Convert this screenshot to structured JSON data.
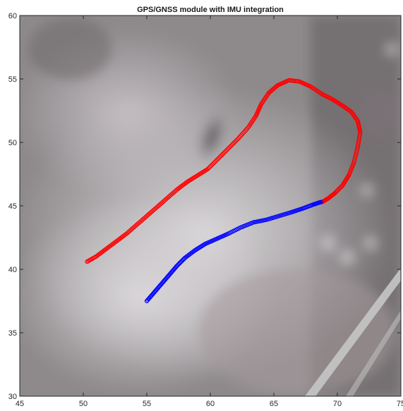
{
  "chart_data": {
    "type": "scatter",
    "title": "GPS/GNSS module with IMU integration",
    "xlabel": "",
    "ylabel": "",
    "xlim": [
      45,
      75
    ],
    "ylim": [
      30,
      60
    ],
    "xticks": [
      "45",
      "50",
      "55",
      "60",
      "65",
      "70",
      "75"
    ],
    "yticks": [
      "30",
      "35",
      "40",
      "45",
      "50",
      "55",
      "60"
    ],
    "background": "aerial photograph",
    "grid": false,
    "series": [
      {
        "color": "#ff0000",
        "marker": "circle-open",
        "points": [
          [
            50.3,
            40.6
          ],
          [
            51.0,
            41.0
          ],
          [
            51.8,
            41.6
          ],
          [
            52.6,
            42.2
          ],
          [
            53.4,
            42.8
          ],
          [
            54.2,
            43.5
          ],
          [
            55.0,
            44.2
          ],
          [
            55.8,
            44.9
          ],
          [
            56.6,
            45.6
          ],
          [
            57.4,
            46.3
          ],
          [
            58.2,
            46.9
          ],
          [
            59.0,
            47.4
          ],
          [
            59.8,
            47.9
          ],
          [
            60.6,
            48.7
          ],
          [
            61.4,
            49.5
          ],
          [
            62.2,
            50.3
          ],
          [
            63.0,
            51.2
          ],
          [
            63.6,
            52.1
          ],
          [
            64.0,
            53.0
          ],
          [
            64.6,
            53.9
          ],
          [
            65.3,
            54.5
          ],
          [
            66.2,
            54.9
          ],
          [
            67.0,
            54.8
          ],
          [
            67.9,
            54.4
          ],
          [
            68.8,
            53.8
          ],
          [
            69.6,
            53.4
          ],
          [
            70.4,
            52.9
          ],
          [
            71.1,
            52.4
          ],
          [
            71.6,
            51.7
          ],
          [
            71.8,
            50.8
          ],
          [
            71.6,
            49.6
          ],
          [
            71.3,
            48.4
          ],
          [
            70.9,
            47.4
          ],
          [
            70.4,
            46.6
          ],
          [
            69.8,
            46.0
          ],
          [
            69.3,
            45.6
          ],
          [
            68.8,
            45.3
          ]
        ]
      },
      {
        "color": "#0000ff",
        "marker": "circle-open",
        "points": [
          [
            55.0,
            37.5
          ],
          [
            55.6,
            38.2
          ],
          [
            56.2,
            38.9
          ],
          [
            56.8,
            39.6
          ],
          [
            57.4,
            40.3
          ],
          [
            58.0,
            40.9
          ],
          [
            58.8,
            41.5
          ],
          [
            59.6,
            42.0
          ],
          [
            60.5,
            42.4
          ],
          [
            61.4,
            42.8
          ],
          [
            62.4,
            43.3
          ],
          [
            63.4,
            43.7
          ],
          [
            64.4,
            43.9
          ],
          [
            65.4,
            44.2
          ],
          [
            66.4,
            44.5
          ],
          [
            67.3,
            44.8
          ],
          [
            68.1,
            45.1
          ],
          [
            68.7,
            45.3
          ]
        ]
      }
    ]
  },
  "colors": {
    "axis": "#262626",
    "photo_base": "#8e8a8c"
  }
}
